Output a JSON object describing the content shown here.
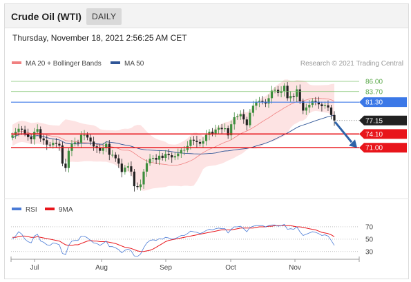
{
  "header": {
    "title": "Crude Oil (WTI)",
    "timeframe": "DAILY",
    "timestamp": "Thursday, November 18, 2021 2:56:25 AM CET"
  },
  "chart_data": [
    {
      "type": "candlestick",
      "legend": [
        {
          "name": "MA 20 + Bollinger Bands",
          "color": "#f08080"
        },
        {
          "name": "MA 50",
          "color": "#2f5597"
        }
      ],
      "legend_placement": "top-left",
      "credit": "Research © 2021 Trading Central",
      "ylim": [
        59.5,
        88.5
      ],
      "x_ticks": [
        "Jul",
        "Aug",
        "Sep",
        "Oct",
        "Nov"
      ],
      "levels": [
        {
          "value": 86.0,
          "label": "86.00",
          "style": "green-line",
          "color": "#7cc16b"
        },
        {
          "value": 83.7,
          "label": "83.70",
          "style": "green-line",
          "color": "#7cc16b"
        },
        {
          "value": 81.3,
          "label": "81.30",
          "style": "blue-tag",
          "color": "#3b78e7"
        },
        {
          "value": 77.15,
          "label": "77.15",
          "style": "last-price",
          "color": "#222222"
        },
        {
          "value": 74.1,
          "label": "74.10",
          "style": "red-tag",
          "color": "#e8151b"
        },
        {
          "value": 71.0,
          "label": "71.00",
          "style": "red-tag",
          "color": "#e8151b"
        }
      ],
      "forecast_arrow": {
        "from": 77.15,
        "to": 71.0,
        "color": "#2f63a8"
      },
      "close": [
        73.8,
        74.6,
        75.3,
        75.1,
        74.2,
        73.4,
        72.9,
        74.6,
        75.2,
        73.1,
        72.7,
        71.7,
        71.6,
        72.1,
        71.9,
        71.5,
        67.4,
        66.4,
        70.3,
        71.9,
        72.2,
        72.1,
        73.9,
        73.9,
        73.3,
        72.4,
        71.3,
        71.0,
        70.3,
        71.0,
        71.9,
        69.4,
        69.4,
        68.6,
        67.4,
        65.5,
        66.5,
        66.8,
        65.6,
        62.3,
        62.1,
        62.7,
        65.6,
        67.5,
        68.5,
        68.7,
        68.3,
        69.2,
        68.7,
        69.6,
        69.3,
        68.8,
        69.1,
        69.7,
        70.5,
        70.5,
        71.4,
        72.8,
        72.6,
        72.3,
        71.9,
        72.5,
        73.9,
        74.6,
        74.2,
        75.1,
        75.5,
        75.2,
        75.4,
        73.8,
        76.3,
        77.9,
        78.1,
        78.6,
        77.4,
        76.1,
        78.9,
        80.5,
        81.4,
        81.6,
        81.4,
        81.0,
        82.2,
        83.9,
        84.1,
        83.4,
        83.8,
        85.0,
        82.2,
        82.7,
        82.5,
        84.2,
        81.5,
        79.4,
        80.1,
        80.7,
        81.6,
        81.4,
        80.8,
        80.4,
        80.6,
        80.1,
        78.4,
        77.15
      ]
    },
    {
      "type": "line",
      "legend": [
        {
          "name": "RSI",
          "color": "#4a7bd6"
        },
        {
          "name": "9MA",
          "color": "#e8151b"
        }
      ],
      "ylim": [
        22,
        80
      ],
      "y_ticks": [
        "70",
        "50",
        "30"
      ],
      "rsi": [
        50,
        55,
        62,
        58,
        50,
        46,
        44,
        55,
        58,
        47,
        45,
        41,
        40,
        44,
        43,
        41,
        27,
        25,
        40,
        47,
        48,
        48,
        55,
        55,
        52,
        48,
        44,
        43,
        40,
        43,
        47,
        38,
        38,
        36,
        33,
        28,
        32,
        34,
        31,
        23,
        22,
        26,
        36,
        44,
        48,
        49,
        48,
        51,
        50,
        53,
        52,
        50,
        51,
        53,
        56,
        56,
        59,
        63,
        62,
        61,
        59,
        61,
        64,
        66,
        65,
        67,
        68,
        67,
        67,
        60,
        66,
        70,
        70,
        71,
        67,
        62,
        69,
        71,
        72,
        72,
        72,
        70,
        72,
        73,
        73,
        71,
        72,
        74,
        66,
        67,
        66,
        70,
        62,
        56,
        58,
        60,
        62,
        61,
        59,
        56,
        57,
        55,
        48,
        40
      ],
      "ma9": [
        53,
        53,
        54,
        55,
        55,
        54,
        53,
        53,
        54,
        53,
        52,
        51,
        50,
        49,
        48,
        47,
        44,
        41,
        40,
        40,
        41,
        41,
        43,
        45,
        47,
        48,
        47,
        47,
        46,
        46,
        46,
        45,
        44,
        43,
        41,
        39,
        37,
        36,
        35,
        33,
        31,
        30,
        30,
        31,
        32,
        34,
        37,
        40,
        43,
        46,
        48,
        49,
        50,
        51,
        52,
        53,
        54,
        55,
        56,
        57,
        58,
        59,
        60,
        61,
        62,
        63,
        64,
        65,
        65,
        65,
        65,
        66,
        67,
        68,
        68,
        68,
        68,
        68,
        69,
        70,
        70,
        70,
        71,
        71,
        72,
        72,
        72,
        72,
        72,
        72,
        71,
        70,
        70,
        69,
        68,
        67,
        66,
        65,
        63,
        61,
        60,
        59,
        57,
        54
      ]
    }
  ]
}
